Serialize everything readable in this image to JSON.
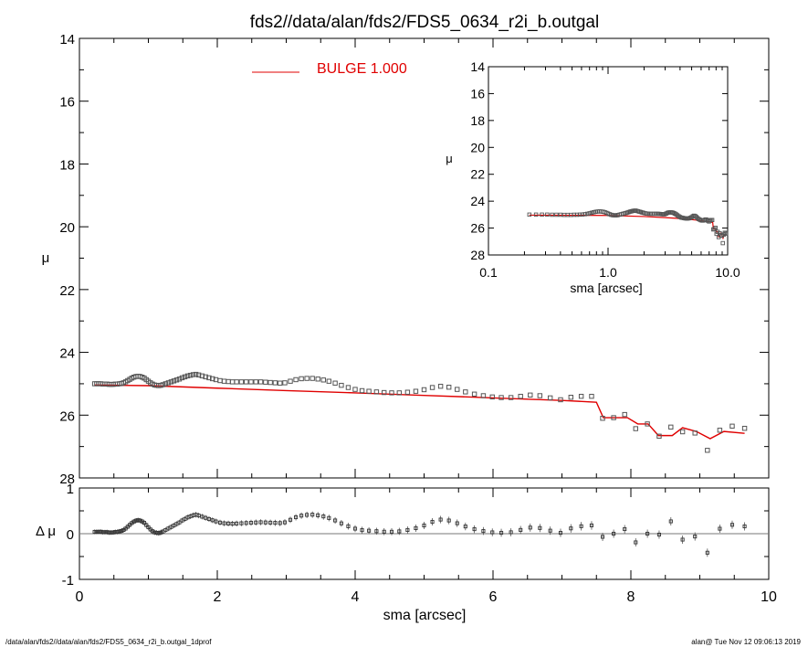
{
  "title": "fds2//data/alan/fds2/FDS5_0634_r2i_b.outgal",
  "footer_left": "/data/alan/fds2//data/alan/fds2/FDS5_0634_r2i_b.outgal_1dprof",
  "footer_right": "alan@  Tue Nov 12 09:06:13 2019",
  "legend": {
    "label": "BULGE  1.000",
    "color": "#e00000"
  },
  "colors": {
    "model": "#e00000",
    "data": "#555555",
    "axes": "#000000"
  },
  "chart_data": [
    {
      "id": "main",
      "type": "scatter",
      "xlabel": "",
      "ylabel": "μ",
      "xlim": [
        0,
        10
      ],
      "ylim": [
        28,
        14
      ],
      "y_inverted": true,
      "xticks": [
        0,
        2,
        4,
        6,
        8,
        10
      ],
      "yticks": [
        14,
        16,
        18,
        20,
        22,
        24,
        26,
        28
      ],
      "series": [
        {
          "name": "data",
          "points": [
            [
              0.22,
              25.0
            ],
            [
              0.25,
              25.0
            ],
            [
              0.28,
              25.0
            ],
            [
              0.31,
              25.0
            ],
            [
              0.34,
              25.01
            ],
            [
              0.37,
              25.01
            ],
            [
              0.4,
              25.01
            ],
            [
              0.43,
              25.02
            ],
            [
              0.46,
              25.02
            ],
            [
              0.49,
              25.02
            ],
            [
              0.52,
              25.01
            ],
            [
              0.55,
              25.01
            ],
            [
              0.58,
              25.0
            ],
            [
              0.61,
              24.99
            ],
            [
              0.64,
              24.97
            ],
            [
              0.67,
              24.94
            ],
            [
              0.7,
              24.9
            ],
            [
              0.73,
              24.86
            ],
            [
              0.76,
              24.82
            ],
            [
              0.79,
              24.79
            ],
            [
              0.82,
              24.77
            ],
            [
              0.85,
              24.76
            ],
            [
              0.88,
              24.77
            ],
            [
              0.91,
              24.79
            ],
            [
              0.94,
              24.82
            ],
            [
              0.97,
              24.87
            ],
            [
              1.0,
              24.92
            ],
            [
              1.03,
              24.97
            ],
            [
              1.06,
              25.01
            ],
            [
              1.09,
              25.04
            ],
            [
              1.12,
              25.05
            ],
            [
              1.15,
              25.06
            ],
            [
              1.18,
              25.05
            ],
            [
              1.21,
              25.03
            ],
            [
              1.25,
              25.0
            ],
            [
              1.29,
              24.97
            ],
            [
              1.33,
              24.94
            ],
            [
              1.37,
              24.91
            ],
            [
              1.41,
              24.88
            ],
            [
              1.45,
              24.85
            ],
            [
              1.49,
              24.81
            ],
            [
              1.53,
              24.78
            ],
            [
              1.57,
              24.75
            ],
            [
              1.61,
              24.73
            ],
            [
              1.65,
              24.71
            ],
            [
              1.69,
              24.7
            ],
            [
              1.73,
              24.72
            ],
            [
              1.78,
              24.75
            ],
            [
              1.83,
              24.78
            ],
            [
              1.88,
              24.81
            ],
            [
              1.93,
              24.84
            ],
            [
              1.98,
              24.87
            ],
            [
              2.04,
              24.9
            ],
            [
              2.1,
              24.92
            ],
            [
              2.16,
              24.93
            ],
            [
              2.22,
              24.94
            ],
            [
              2.28,
              24.94
            ],
            [
              2.35,
              24.94
            ],
            [
              2.42,
              24.94
            ],
            [
              2.49,
              24.94
            ],
            [
              2.56,
              24.94
            ],
            [
              2.63,
              24.94
            ],
            [
              2.7,
              24.95
            ],
            [
              2.77,
              24.96
            ],
            [
              2.84,
              24.97
            ],
            [
              2.91,
              24.98
            ],
            [
              2.98,
              24.97
            ],
            [
              3.06,
              24.92
            ],
            [
              3.14,
              24.87
            ],
            [
              3.22,
              24.84
            ],
            [
              3.3,
              24.83
            ],
            [
              3.38,
              24.83
            ],
            [
              3.46,
              24.85
            ],
            [
              3.54,
              24.88
            ],
            [
              3.62,
              24.92
            ],
            [
              3.71,
              24.98
            ],
            [
              3.8,
              25.05
            ],
            [
              3.9,
              25.12
            ],
            [
              4.0,
              25.18
            ],
            [
              4.1,
              25.22
            ],
            [
              4.2,
              25.24
            ],
            [
              4.31,
              25.26
            ],
            [
              4.42,
              25.28
            ],
            [
              4.53,
              25.29
            ],
            [
              4.64,
              25.29
            ],
            [
              4.76,
              25.27
            ],
            [
              4.88,
              25.24
            ],
            [
              5.0,
              25.19
            ],
            [
              5.12,
              25.12
            ],
            [
              5.24,
              25.08
            ],
            [
              5.36,
              25.11
            ],
            [
              5.48,
              25.18
            ],
            [
              5.6,
              25.26
            ],
            [
              5.73,
              25.33
            ],
            [
              5.86,
              25.38
            ],
            [
              5.99,
              25.42
            ],
            [
              6.12,
              25.44
            ],
            [
              6.26,
              25.44
            ],
            [
              6.4,
              25.4
            ],
            [
              6.54,
              25.36
            ],
            [
              6.68,
              25.38
            ],
            [
              6.83,
              25.45
            ],
            [
              6.98,
              25.51
            ],
            [
              7.13,
              25.43
            ],
            [
              7.28,
              25.4
            ],
            [
              7.43,
              25.4
            ],
            [
              7.59,
              26.1
            ],
            [
              7.75,
              26.08
            ],
            [
              7.91,
              25.98
            ],
            [
              8.07,
              26.43
            ],
            [
              8.24,
              26.28
            ],
            [
              8.41,
              26.67
            ],
            [
              8.58,
              26.38
            ],
            [
              8.75,
              26.53
            ],
            [
              8.93,
              26.57
            ],
            [
              9.11,
              27.12
            ],
            [
              9.29,
              26.48
            ],
            [
              9.47,
              26.35
            ],
            [
              9.65,
              26.42
            ]
          ]
        },
        {
          "name": "model",
          "points": [
            [
              0.22,
              25.04
            ],
            [
              0.6,
              25.05
            ],
            [
              1.0,
              25.06
            ],
            [
              2.0,
              25.14
            ],
            [
              3.0,
              25.22
            ],
            [
              4.0,
              25.29
            ],
            [
              5.0,
              25.37
            ],
            [
              6.0,
              25.45
            ],
            [
              7.0,
              25.53
            ],
            [
              7.5,
              25.59
            ],
            [
              7.6,
              26.08
            ],
            [
              7.95,
              26.08
            ],
            [
              8.1,
              26.28
            ],
            [
              8.25,
              26.28
            ],
            [
              8.4,
              26.65
            ],
            [
              8.6,
              26.65
            ],
            [
              8.75,
              26.4
            ],
            [
              8.95,
              26.52
            ],
            [
              9.15,
              26.75
            ],
            [
              9.35,
              26.52
            ],
            [
              9.65,
              26.58
            ]
          ]
        }
      ]
    },
    {
      "id": "inset",
      "type": "scatter",
      "xlabel": "sma [arcsec]",
      "ylabel": "μ",
      "x_scale": "log",
      "xlim": [
        0.1,
        10.0
      ],
      "ylim": [
        28,
        14
      ],
      "y_inverted": true,
      "xticks": [
        "0.1",
        "1.0",
        "10.0"
      ],
      "yticks": [
        14,
        16,
        18,
        20,
        22,
        24,
        26,
        28
      ]
    },
    {
      "id": "residual",
      "type": "scatter",
      "xlabel": "sma [arcsec]",
      "ylabel": "Δ μ",
      "xlim": [
        0,
        10
      ],
      "ylim": [
        -1,
        1
      ],
      "xticks": [
        0,
        2,
        4,
        6,
        8,
        10
      ],
      "yticks": [
        -1,
        0,
        1
      ],
      "reference_line": 0,
      "values_note_free": true
    }
  ]
}
